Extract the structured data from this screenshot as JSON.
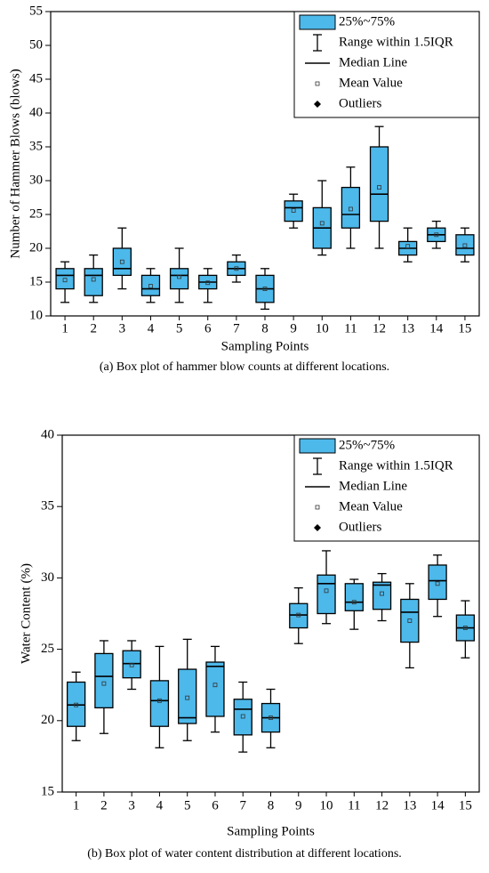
{
  "chart_data": [
    {
      "type": "box",
      "ylabel": "Number of Hammer Blows (blows)",
      "xlabel": "Sampling Points",
      "caption": "(a) Box plot of hammer blow counts at different locations.",
      "categories": [
        "1",
        "2",
        "3",
        "4",
        "5",
        "6",
        "7",
        "8",
        "9",
        "10",
        "11",
        "12",
        "13",
        "14",
        "15"
      ],
      "color": "#4db8ea",
      "ylim": [
        10,
        55
      ],
      "yticks": [
        10,
        15,
        20,
        25,
        30,
        35,
        40,
        45,
        50,
        55
      ],
      "legend": [
        "25%~75%",
        "Range within 1.5IQR",
        "Median Line",
        "Mean Value",
        "Outliers"
      ],
      "stats": {
        "whisker_low": [
          12,
          12,
          14,
          12,
          12,
          12,
          15,
          11,
          23,
          19,
          20,
          20,
          18,
          20,
          18
        ],
        "q1": [
          14,
          13,
          16,
          13,
          14,
          14,
          16,
          12,
          24,
          20,
          23,
          24,
          19,
          21,
          19
        ],
        "median": [
          16,
          16,
          17,
          14,
          16,
          15,
          17,
          14,
          26,
          23,
          25,
          28,
          20,
          22,
          20
        ],
        "q3": [
          17,
          17,
          20,
          16,
          17,
          16,
          18,
          16,
          27,
          26,
          29,
          35,
          21,
          23,
          22
        ],
        "whisker_high": [
          18,
          19,
          23,
          17,
          20,
          17,
          19,
          17,
          28,
          30,
          32,
          38,
          23,
          24,
          23
        ],
        "mean": [
          15.3,
          15.4,
          18,
          14.4,
          15.8,
          14.9,
          17,
          14,
          25.6,
          23.7,
          25.8,
          29,
          20.3,
          22,
          20.4
        ]
      }
    },
    {
      "type": "box",
      "ylabel": "Water Content (%)",
      "xlabel": "Sampling Points",
      "caption": "(b) Box plot of water content distribution at different locations.",
      "categories": [
        "1",
        "2",
        "3",
        "4",
        "5",
        "6",
        "7",
        "8",
        "9",
        "10",
        "11",
        "12",
        "13",
        "14",
        "15"
      ],
      "color": "#4db8ea",
      "ylim": [
        15,
        40
      ],
      "yticks": [
        15,
        20,
        25,
        30,
        35,
        40
      ],
      "legend": [
        "25%~75%",
        "Range within 1.5IQR",
        "Median Line",
        "Mean Value",
        "Outliers"
      ],
      "stats": {
        "whisker_low": [
          18.6,
          19.1,
          22.2,
          18.1,
          18.6,
          19.2,
          17.8,
          18.1,
          25.4,
          26.8,
          26.4,
          27.0,
          23.7,
          27.3,
          24.4
        ],
        "q1": [
          19.6,
          20.9,
          23.0,
          19.6,
          19.8,
          20.3,
          19.0,
          19.2,
          26.5,
          27.5,
          27.7,
          27.8,
          25.5,
          28.5,
          25.6
        ],
        "median": [
          21.1,
          23.1,
          24.0,
          21.4,
          20.2,
          23.8,
          20.8,
          20.2,
          27.4,
          29.6,
          28.3,
          29.5,
          27.6,
          29.8,
          26.5
        ],
        "q3": [
          22.7,
          24.7,
          24.9,
          22.8,
          23.6,
          24.1,
          21.5,
          21.2,
          28.2,
          30.2,
          29.6,
          29.7,
          28.5,
          30.9,
          27.4
        ],
        "whisker_high": [
          23.4,
          25.6,
          25.6,
          25.2,
          25.7,
          25.2,
          22.7,
          22.2,
          29.3,
          31.9,
          29.9,
          30.3,
          29.6,
          31.6,
          28.4
        ],
        "mean": [
          21.1,
          22.6,
          23.9,
          21.4,
          21.6,
          22.5,
          20.3,
          20.2,
          27.4,
          29.1,
          28.3,
          28.9,
          27.0,
          29.6,
          26.5
        ]
      }
    }
  ]
}
